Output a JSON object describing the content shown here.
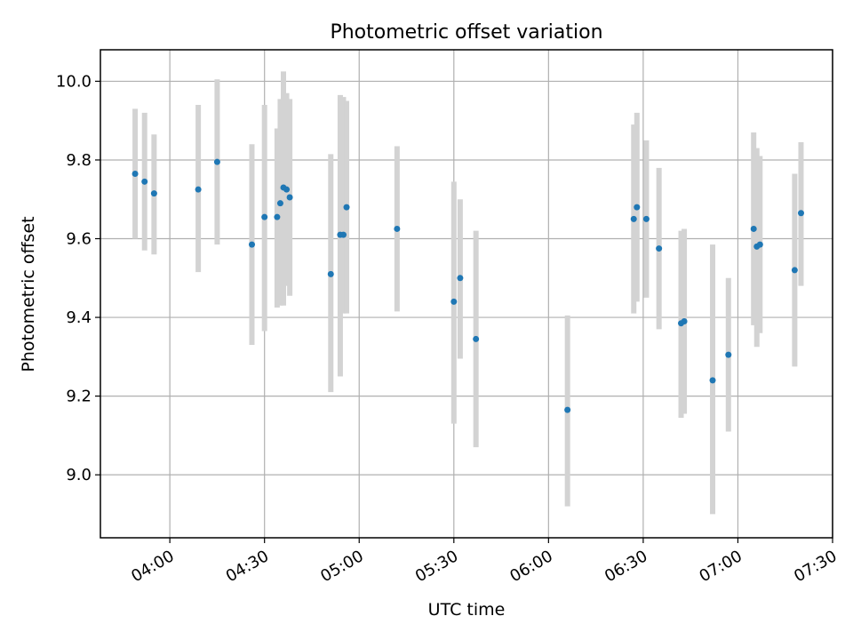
{
  "chart_data": {
    "type": "scatter",
    "title": "Photometric offset variation",
    "xlabel": "UTC time",
    "ylabel": "Photometric offset",
    "x_tick_labels": [
      "04:00",
      "04:30",
      "05:00",
      "05:30",
      "06:00",
      "06:30",
      "07:00",
      "07:30"
    ],
    "y_tick_labels": [
      "9.0",
      "9.2",
      "9.4",
      "9.6",
      "9.8",
      "10.0"
    ],
    "xlim": [
      "03:38",
      "07:30"
    ],
    "ylim": [
      8.84,
      10.08
    ],
    "grid": true,
    "colors": {
      "point": "#1f77b4",
      "errorbar": "#d3d3d3"
    },
    "series": [
      {
        "points": [
          {
            "x": "03:49",
            "y": 9.765,
            "lo": 9.6,
            "hi": 9.93
          },
          {
            "x": "03:52",
            "y": 9.745,
            "lo": 9.57,
            "hi": 9.92
          },
          {
            "x": "03:55",
            "y": 9.715,
            "lo": 9.56,
            "hi": 9.865
          },
          {
            "x": "04:09",
            "y": 9.725,
            "lo": 9.515,
            "hi": 9.94
          },
          {
            "x": "04:15",
            "y": 9.795,
            "lo": 9.585,
            "hi": 10.005
          },
          {
            "x": "04:26",
            "y": 9.585,
            "lo": 9.33,
            "hi": 9.84
          },
          {
            "x": "04:30",
            "y": 9.655,
            "lo": 9.365,
            "hi": 9.94
          },
          {
            "x": "04:34",
            "y": 9.655,
            "lo": 9.425,
            "hi": 9.88
          },
          {
            "x": "04:35",
            "y": 9.69,
            "lo": 9.43,
            "hi": 9.955
          },
          {
            "x": "04:36",
            "y": 9.73,
            "lo": 9.43,
            "hi": 10.025
          },
          {
            "x": "04:37",
            "y": 9.725,
            "lo": 9.48,
            "hi": 9.97
          },
          {
            "x": "04:38",
            "y": 9.705,
            "lo": 9.455,
            "hi": 9.955
          },
          {
            "x": "04:51",
            "y": 9.51,
            "lo": 9.21,
            "hi": 9.815
          },
          {
            "x": "04:54",
            "y": 9.61,
            "lo": 9.25,
            "hi": 9.965
          },
          {
            "x": "04:55",
            "y": 9.61,
            "lo": 9.41,
            "hi": 9.96
          },
          {
            "x": "04:56",
            "y": 9.68,
            "lo": 9.41,
            "hi": 9.95
          },
          {
            "x": "05:12",
            "y": 9.625,
            "lo": 9.415,
            "hi": 9.835
          },
          {
            "x": "05:30",
            "y": 9.44,
            "lo": 9.13,
            "hi": 9.745
          },
          {
            "x": "05:32",
            "y": 9.5,
            "lo": 9.295,
            "hi": 9.7
          },
          {
            "x": "05:37",
            "y": 9.345,
            "lo": 9.07,
            "hi": 9.62
          },
          {
            "x": "06:06",
            "y": 9.165,
            "lo": 8.92,
            "hi": 9.405
          },
          {
            "x": "06:27",
            "y": 9.65,
            "lo": 9.41,
            "hi": 9.89
          },
          {
            "x": "06:28",
            "y": 9.68,
            "lo": 9.44,
            "hi": 9.92
          },
          {
            "x": "06:31",
            "y": 9.65,
            "lo": 9.45,
            "hi": 9.85
          },
          {
            "x": "06:35",
            "y": 9.575,
            "lo": 9.37,
            "hi": 9.78
          },
          {
            "x": "06:42",
            "y": 9.385,
            "lo": 9.145,
            "hi": 9.62
          },
          {
            "x": "06:43",
            "y": 9.39,
            "lo": 9.155,
            "hi": 9.625
          },
          {
            "x": "06:52",
            "y": 9.24,
            "lo": 8.9,
            "hi": 9.585
          },
          {
            "x": "06:57",
            "y": 9.305,
            "lo": 9.11,
            "hi": 9.5
          },
          {
            "x": "07:05",
            "y": 9.625,
            "lo": 9.38,
            "hi": 9.87
          },
          {
            "x": "07:06",
            "y": 9.58,
            "lo": 9.325,
            "hi": 9.83
          },
          {
            "x": "07:07",
            "y": 9.585,
            "lo": 9.36,
            "hi": 9.81
          },
          {
            "x": "07:18",
            "y": 9.52,
            "lo": 9.275,
            "hi": 9.765
          },
          {
            "x": "07:20",
            "y": 9.665,
            "lo": 9.48,
            "hi": 9.845
          }
        ]
      }
    ]
  }
}
